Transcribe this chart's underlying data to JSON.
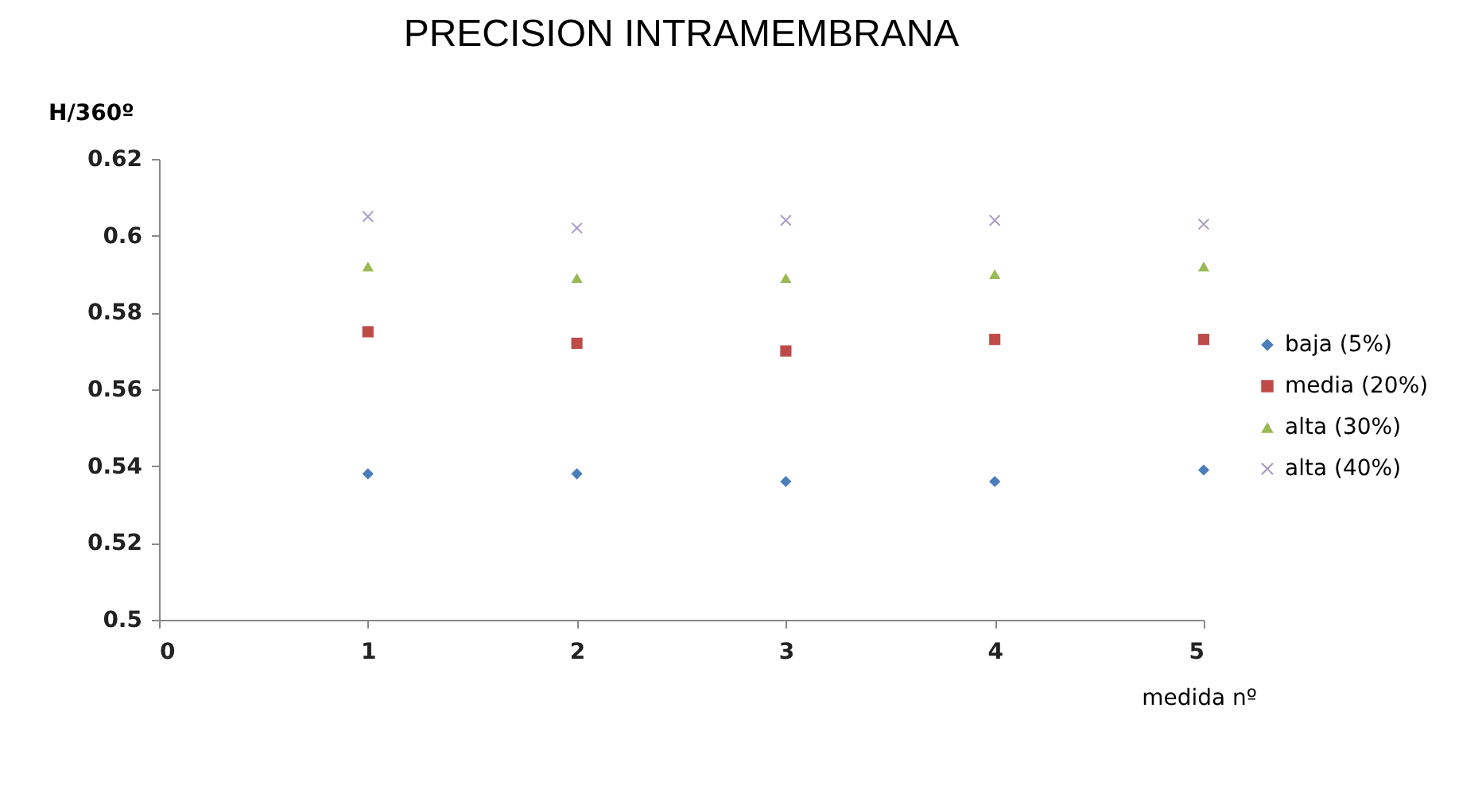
{
  "chart_data": {
    "type": "scatter",
    "title": "PRECISION INTRAMEMBRANA",
    "xlabel": "medida nº",
    "ylabel": "H/360º",
    "x": [
      1,
      2,
      3,
      4,
      5
    ],
    "xlim": [
      0,
      5
    ],
    "xticks": [
      0,
      1,
      2,
      3,
      4,
      5
    ],
    "ylim": [
      0.5,
      0.62
    ],
    "yticks": [
      0.5,
      0.52,
      0.54,
      0.56,
      0.58,
      0.6,
      0.62
    ],
    "grid": false,
    "legend": "right",
    "series": [
      {
        "name": "baja (5%)",
        "color": "#4a7ebb",
        "marker": "diamond",
        "values": [
          0.538,
          0.538,
          0.536,
          0.536,
          0.539
        ]
      },
      {
        "name": "media (20%)",
        "color": "#be4b48",
        "marker": "square",
        "values": [
          0.575,
          0.572,
          0.57,
          0.573,
          0.573
        ]
      },
      {
        "name": "alta (30%)",
        "color": "#98b954",
        "marker": "triangle",
        "values": [
          0.592,
          0.589,
          0.589,
          0.59,
          0.592
        ]
      },
      {
        "name": "alta (40%)",
        "color": "#a99bc8",
        "marker": "cross",
        "values": [
          0.605,
          0.602,
          0.604,
          0.604,
          0.603
        ]
      }
    ]
  }
}
